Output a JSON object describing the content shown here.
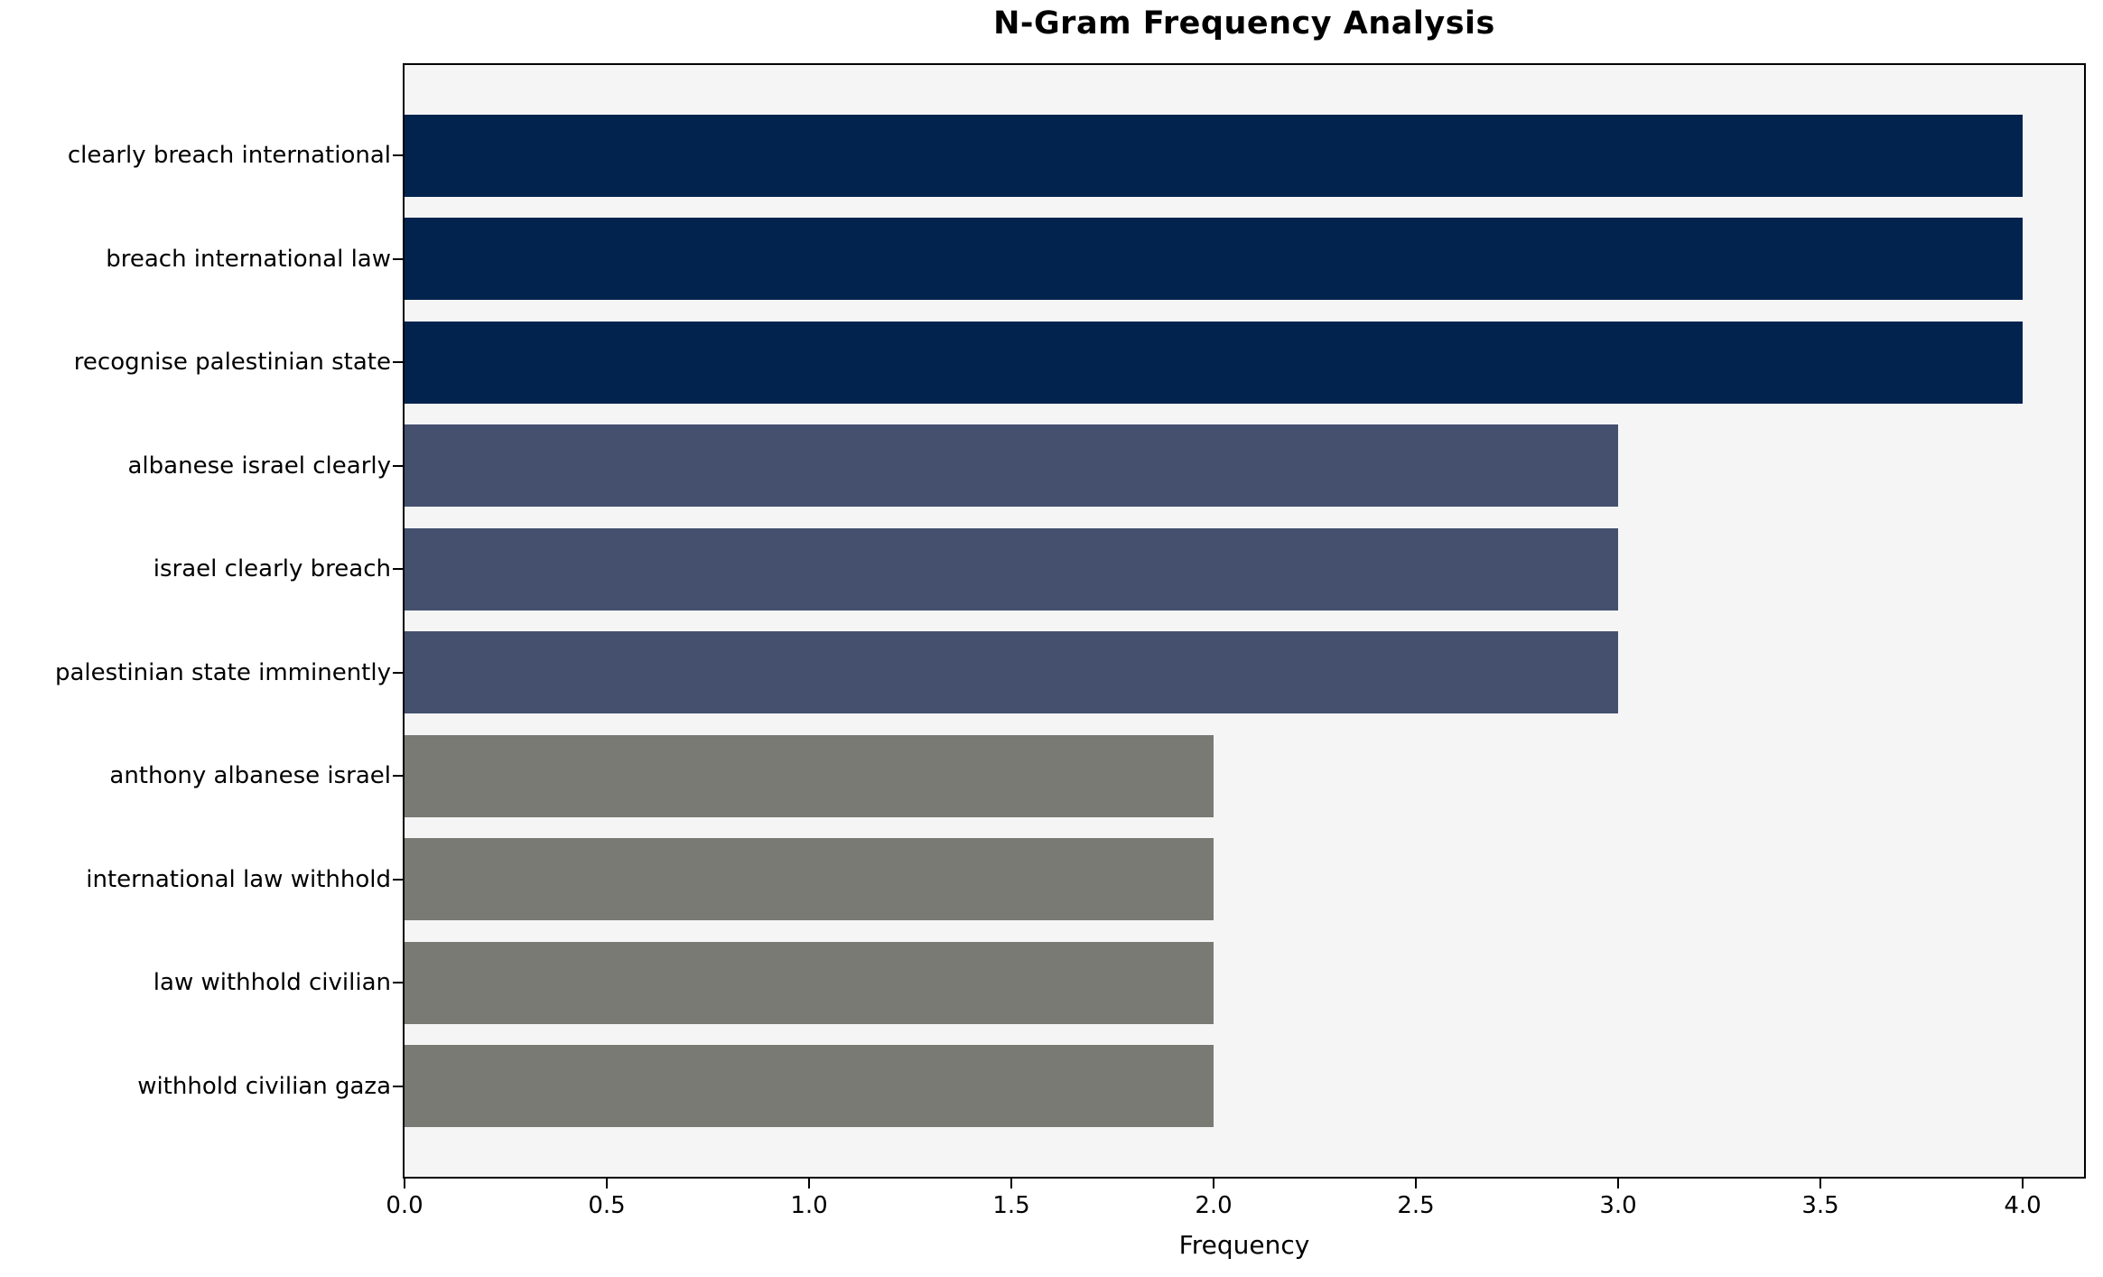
{
  "chart_data": {
    "type": "bar",
    "orientation": "horizontal",
    "title": "N-Gram Frequency Analysis",
    "xlabel": "Frequency",
    "ylabel": "",
    "categories": [
      "clearly breach international",
      "breach international law",
      "recognise palestinian state",
      "albanese israel clearly",
      "israel clearly breach",
      "palestinian state imminently",
      "anthony albanese israel",
      "international law withhold",
      "law withhold civilian",
      "withhold civilian gaza"
    ],
    "values": [
      4,
      4,
      4,
      3,
      3,
      3,
      2,
      2,
      2,
      2
    ],
    "bar_colors": [
      "#02234e",
      "#02234e",
      "#02234e",
      "#44506e",
      "#44506e",
      "#44506e",
      "#7a7a75",
      "#7a7a75",
      "#7a7a75",
      "#7a7a75"
    ],
    "xlim": [
      0.0,
      4.152
    ],
    "xticks": [
      {
        "value": 0.0,
        "label": "0.0"
      },
      {
        "value": 0.5,
        "label": "0.5"
      },
      {
        "value": 1.0,
        "label": "1.0"
      },
      {
        "value": 1.5,
        "label": "1.5"
      },
      {
        "value": 2.0,
        "label": "2.0"
      },
      {
        "value": 2.5,
        "label": "2.5"
      },
      {
        "value": 3.0,
        "label": "3.0"
      },
      {
        "value": 3.5,
        "label": "3.5"
      },
      {
        "value": 4.0,
        "label": "4.0"
      }
    ],
    "grid": "off",
    "legend": "none",
    "plot_background": "#f5f5f6",
    "figure_background": "#ffffff"
  }
}
